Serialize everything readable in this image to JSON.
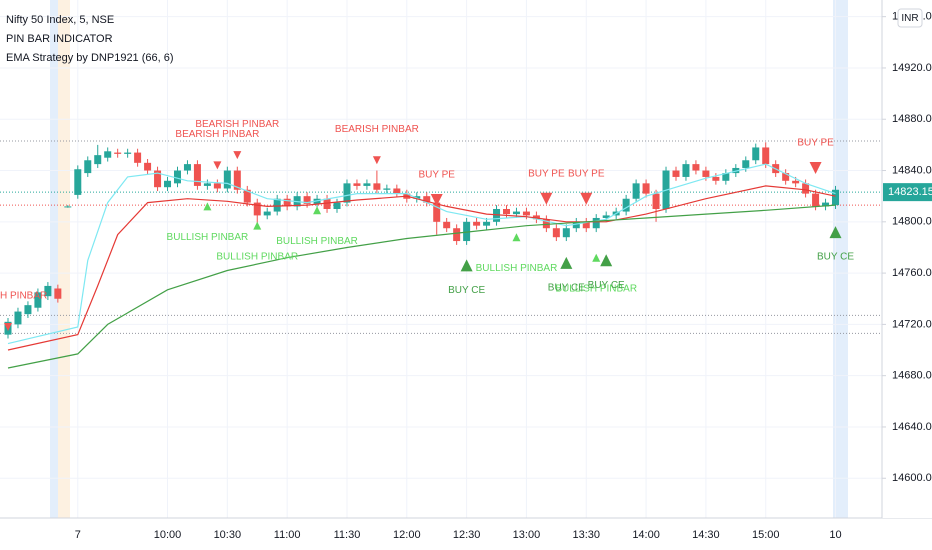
{
  "chart_data": {
    "type": "candlestick",
    "title": "Nifty 50 Index, 5, NSE",
    "indicators": [
      "PIN BAR INDICATOR",
      "EMA Strategy by DNP1921 (66, 6)"
    ],
    "currency": "INR",
    "ylim": [
      14569,
      14973
    ],
    "yticks": [
      {
        "value": 14600,
        "label": "14600.00"
      },
      {
        "value": 14640,
        "label": "14640.00"
      },
      {
        "value": 14680,
        "label": "14680.00"
      },
      {
        "value": 14720,
        "label": "14720.00"
      },
      {
        "value": 14760,
        "label": "14760.00"
      },
      {
        "value": 14800,
        "label": "14800.00"
      },
      {
        "value": 14840,
        "label": "14840.00"
      },
      {
        "value": 14880,
        "label": "14880.00"
      },
      {
        "value": 14920,
        "label": "14920.00"
      },
      {
        "value": 14960,
        "label": "14960.00"
      }
    ],
    "grid": true,
    "up_color": "#26a69a",
    "down_color": "#ef5350",
    "categories": [
      null,
      null,
      null,
      null,
      null,
      null,
      null,
      "7",
      null,
      null,
      null,
      null,
      null,
      null,
      null,
      null,
      "10:00",
      null,
      null,
      null,
      null,
      null,
      "10:30",
      null,
      null,
      null,
      null,
      null,
      "11:00",
      null,
      null,
      null,
      null,
      null,
      "11:30",
      null,
      null,
      null,
      null,
      null,
      "12:00",
      null,
      null,
      null,
      null,
      null,
      "12:30",
      null,
      null,
      null,
      null,
      null,
      "13:00",
      null,
      null,
      null,
      null,
      null,
      "13:30",
      null,
      null,
      null,
      null,
      null,
      "14:00",
      null,
      null,
      null,
      null,
      null,
      "14:30",
      null,
      null,
      null,
      null,
      null,
      "15:00",
      null,
      null,
      null,
      null,
      null,
      null,
      "10"
    ],
    "open": [
      14712,
      14720,
      14728,
      14733,
      14742,
      14748,
      14812,
      14821,
      14838,
      14845,
      14850,
      14854,
      14853,
      14854,
      14846,
      14840,
      14827,
      14830,
      14840,
      14845,
      14828,
      14830,
      14826,
      14840,
      14825,
      14815,
      14805,
      14808,
      14818,
      14812,
      14820,
      14814,
      14818,
      14810,
      14815,
      14830,
      14828,
      14830,
      14825,
      14826,
      14822,
      14818,
      14820,
      14815,
      14800,
      14795,
      14785,
      14800,
      14797,
      14800,
      14810,
      14806,
      14808,
      14805,
      14802,
      14795,
      14788,
      14795,
      14800,
      14795,
      14803,
      14805,
      14808,
      14818,
      14830,
      14822,
      14810,
      14840,
      14835,
      14845,
      14840,
      14835,
      14832,
      14838,
      14842,
      14848,
      14858,
      14845,
      14838,
      14832,
      14830,
      14822,
      14812,
      14813
    ],
    "high": [
      14725,
      14733,
      14738,
      14748,
      14753,
      14751,
      14813,
      14844,
      14851,
      14860,
      14858,
      14857,
      14857,
      14857,
      14849,
      14843,
      14835,
      14843,
      14848,
      14848,
      14833,
      14833,
      14843,
      14843,
      14828,
      14818,
      14811,
      14821,
      14821,
      14823,
      14823,
      14821,
      14821,
      14818,
      14833,
      14833,
      14833,
      14840,
      14829,
      14829,
      14825,
      14823,
      14823,
      14818,
      14803,
      14798,
      14803,
      14803,
      14803,
      14813,
      14813,
      14811,
      14811,
      14808,
      14805,
      14798,
      14798,
      14803,
      14803,
      14806,
      14808,
      14811,
      14821,
      14833,
      14833,
      14825,
      14843,
      14843,
      14848,
      14848,
      14843,
      14838,
      14841,
      14845,
      14851,
      14861,
      14862,
      14848,
      14841,
      14835,
      14833,
      14825,
      14818,
      14828
    ],
    "low": [
      14709,
      14717,
      14725,
      14730,
      14739,
      14737,
      14811,
      14818,
      14835,
      14842,
      14847,
      14850,
      14850,
      14843,
      14837,
      14824,
      14824,
      14827,
      14837,
      14825,
      14825,
      14823,
      14823,
      14822,
      14812,
      14795,
      14802,
      14805,
      14809,
      14809,
      14811,
      14811,
      14807,
      14807,
      14812,
      14825,
      14825,
      14822,
      14822,
      14819,
      14815,
      14815,
      14812,
      14790,
      14792,
      14782,
      14782,
      14794,
      14794,
      14797,
      14803,
      14803,
      14802,
      14799,
      14792,
      14785,
      14785,
      14792,
      14792,
      14792,
      14800,
      14802,
      14805,
      14815,
      14819,
      14800,
      14807,
      14832,
      14832,
      14837,
      14832,
      14829,
      14829,
      14835,
      14839,
      14845,
      14842,
      14835,
      14829,
      14827,
      14819,
      14809,
      14809,
      14810
    ],
    "close": [
      14722,
      14730,
      14735,
      14745,
      14750,
      14740,
      14812,
      14841,
      14848,
      14852,
      14855,
      14853,
      14854,
      14846,
      14840,
      14827,
      14832,
      14840,
      14845,
      14828,
      14830,
      14826,
      14840,
      14825,
      14815,
      14805,
      14808,
      14818,
      14812,
      14820,
      14814,
      14818,
      14810,
      14815,
      14830,
      14828,
      14830,
      14825,
      14826,
      14822,
      14818,
      14820,
      14815,
      14800,
      14795,
      14785,
      14800,
      14797,
      14800,
      14810,
      14806,
      14808,
      14805,
      14802,
      14795,
      14788,
      14795,
      14800,
      14795,
      14803,
      14805,
      14808,
      14818,
      14830,
      14822,
      14810,
      14840,
      14835,
      14845,
      14840,
      14835,
      14832,
      14838,
      14842,
      14848,
      14858,
      14845,
      14838,
      14832,
      14830,
      14822,
      14812,
      14815,
      14825
    ],
    "series": [
      {
        "color": "#7ee8f2",
        "x": [
          0,
          7,
          8,
          10,
          12,
          15,
          18,
          22,
          26,
          30,
          35,
          40,
          44,
          48,
          52,
          56,
          60,
          64,
          70,
          76,
          80,
          83
        ],
        "values": [
          14705,
          14718,
          14770,
          14815,
          14835,
          14838,
          14832,
          14830,
          14818,
          14815,
          14822,
          14822,
          14808,
          14802,
          14804,
          14797,
          14802,
          14820,
          14834,
          14845,
          14830,
          14822
        ]
      },
      {
        "color": "#e53935",
        "x": [
          0,
          7,
          9,
          11,
          14,
          18,
          22,
          26,
          30,
          35,
          40,
          44,
          48,
          52,
          56,
          60,
          64,
          70,
          76,
          80,
          83
        ],
        "values": [
          14700,
          14712,
          14750,
          14790,
          14815,
          14818,
          14816,
          14812,
          14813,
          14817,
          14820,
          14812,
          14806,
          14804,
          14800,
          14800,
          14806,
          14818,
          14828,
          14825,
          14820
        ]
      },
      {
        "color": "#43a047",
        "x": [
          0,
          7,
          10,
          16,
          22,
          28,
          34,
          40,
          46,
          52,
          58,
          64,
          70,
          76,
          83
        ],
        "values": [
          14686,
          14697,
          14720,
          14747,
          14762,
          14772,
          14780,
          14787,
          14792,
          14797,
          14800,
          14803,
          14806,
          14809,
          14813
        ]
      }
    ],
    "reference_lines": [
      {
        "value": 14863,
        "color": "#9598a1"
      },
      {
        "value": 14813,
        "color": "#ef5350"
      },
      {
        "value": 14727,
        "color": "#9598a1"
      },
      {
        "value": 14713,
        "color": "#9598a1"
      }
    ],
    "last_price": 14823.15,
    "last_price_color": "#26a69a",
    "signals": [
      {
        "x": 0,
        "y": 14718,
        "shape": "down",
        "size": "small",
        "color": "#ef5350",
        "label": "H PINBAR"
      },
      {
        "x": 21,
        "y": 14844,
        "shape": "down",
        "size": "small",
        "color": "#ef5350",
        "label": "BEARISH PINBAR"
      },
      {
        "x": 23,
        "y": 14852,
        "shape": "down",
        "size": "small",
        "color": "#ef5350",
        "label": "BEARISH PINBAR"
      },
      {
        "x": 37,
        "y": 14848,
        "shape": "down",
        "size": "small",
        "color": "#ef5350",
        "label": "BEARISH PINBAR"
      },
      {
        "x": 43,
        "y": 14817,
        "shape": "down",
        "size": "big",
        "color": "#ef5350",
        "label": "BUY PE"
      },
      {
        "x": 54,
        "y": 14818,
        "shape": "down",
        "size": "big",
        "color": "#ef5350",
        "label": "BUY PE"
      },
      {
        "x": 58,
        "y": 14818,
        "shape": "down",
        "size": "big",
        "color": "#ef5350",
        "label": "BUY PE"
      },
      {
        "x": 81,
        "y": 14842,
        "shape": "down",
        "size": "big",
        "color": "#ef5350",
        "label": "BUY PE"
      },
      {
        "x": 20,
        "y": 14812,
        "shape": "up",
        "size": "small",
        "color": "#5fd95f",
        "label": "BULLISH PINBAR"
      },
      {
        "x": 25,
        "y": 14797,
        "shape": "up",
        "size": "small",
        "color": "#5fd95f",
        "label": "BULLISH PINBAR"
      },
      {
        "x": 31,
        "y": 14809,
        "shape": "up",
        "size": "small",
        "color": "#5fd95f",
        "label": "BULLISH PINBAR"
      },
      {
        "x": 51,
        "y": 14788,
        "shape": "up",
        "size": "small",
        "color": "#5fd95f",
        "label": "BULLISH PINBAR"
      },
      {
        "x": 59,
        "y": 14772,
        "shape": "up",
        "size": "small",
        "color": "#5fd95f",
        "label": "BULLISH PINBAR"
      },
      {
        "x": 46,
        "y": 14766,
        "shape": "up",
        "size": "big",
        "color": "#43a047",
        "label": "BUY CE"
      },
      {
        "x": 56,
        "y": 14768,
        "shape": "up",
        "size": "big",
        "color": "#43a047",
        "label": "BUY CE"
      },
      {
        "x": 60,
        "y": 14770,
        "shape": "up",
        "size": "big",
        "color": "#43a047",
        "label": "BUY CE"
      },
      {
        "x": 83,
        "y": 14792,
        "shape": "up",
        "size": "big",
        "color": "#43a047",
        "label": "BUY CE"
      }
    ]
  }
}
